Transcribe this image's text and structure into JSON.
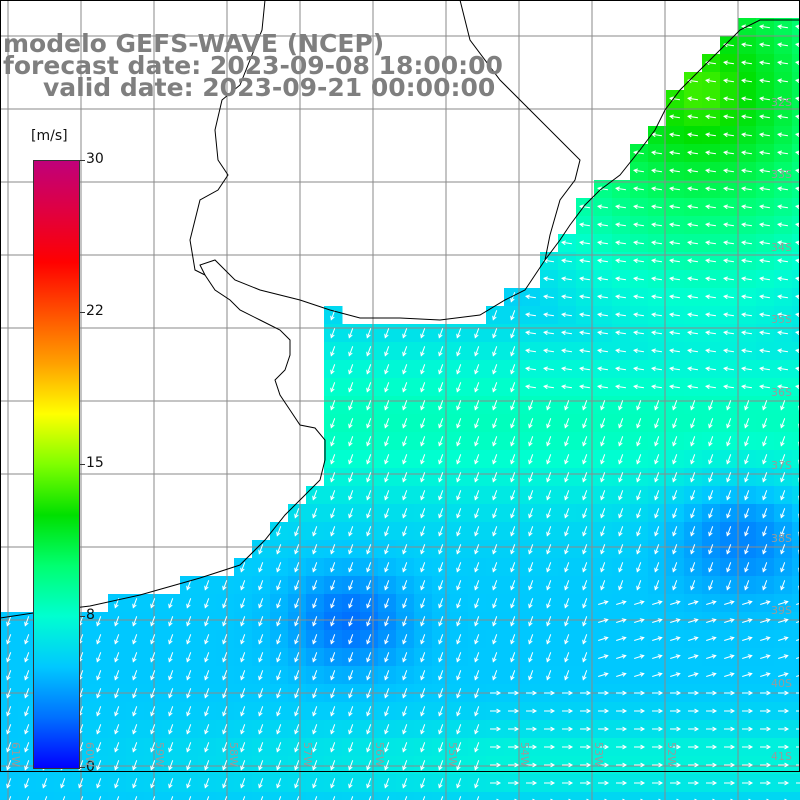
{
  "title": {
    "line1": "modelo GEFS-WAVE (NCEP)",
    "line2": "forecast date: 2023-09-08 18:00:00",
    "line3": "valid date: 2023-09-21 00:00:00"
  },
  "colorbar": {
    "units": "[m/s]",
    "ticks": [
      "30",
      "22",
      "15",
      "8",
      "0"
    ],
    "tick_values": [
      30,
      22,
      15,
      8,
      0
    ],
    "colors": [
      "#0000ff",
      "#0070ff",
      "#00c8ff",
      "#00ffd0",
      "#00ff70",
      "#00e000",
      "#7fff00",
      "#ffff00",
      "#ffa000",
      "#ff5000",
      "#ff0000",
      "#e00040",
      "#c0007a"
    ],
    "range": [
      0,
      30
    ]
  },
  "latitude_labels": [
    "32S",
    "33S",
    "34S",
    "35S",
    "36S",
    "37S",
    "38S",
    "39S",
    "40S",
    "41S"
  ],
  "longitude_labels": [
    "61W",
    "60W",
    "59W",
    "58W",
    "57W",
    "56W",
    "55W",
    "54W",
    "53W",
    "52W"
  ],
  "map": {
    "region": "Rio de la Plata / South Atlantic",
    "variable": "wind speed and direction",
    "land_color": "#ffffff",
    "coast_color": "#000000",
    "grid_color": "#888888",
    "arrow_color": "#ffffff"
  }
}
